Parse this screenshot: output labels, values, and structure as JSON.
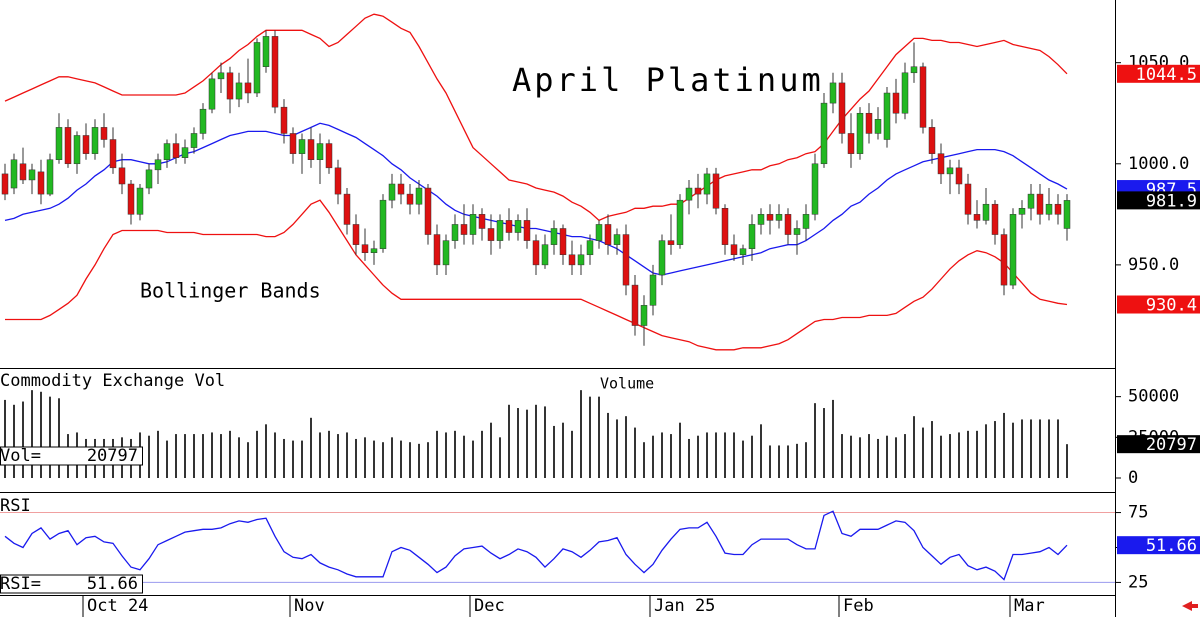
{
  "chart_data": [
    {
      "type": "candlestick",
      "title": "April Platinum",
      "annotation": "Bollinger Bands",
      "categories": [
        null,
        null,
        null,
        null,
        null,
        null,
        null,
        null,
        null,
        "Oct 24",
        null,
        null,
        null,
        null,
        null,
        null,
        null,
        null,
        null,
        null,
        null,
        null,
        null,
        null,
        null,
        null,
        null,
        null,
        null,
        null,
        null,
        null,
        "Nov",
        null,
        null,
        null,
        null,
        null,
        null,
        null,
        null,
        null,
        null,
        null,
        null,
        null,
        null,
        null,
        null,
        null,
        null,
        null,
        "Dec",
        null,
        null,
        null,
        null,
        null,
        null,
        null,
        null,
        null,
        null,
        null,
        null,
        null,
        null,
        null,
        null,
        null,
        null,
        null,
        "Jan 25",
        null,
        null,
        null,
        null,
        null,
        null,
        null,
        null,
        null,
        null,
        null,
        null,
        null,
        null,
        null,
        null,
        null,
        null,
        null,
        null,
        "Feb",
        null,
        null,
        null,
        null,
        null,
        null,
        null,
        null,
        null,
        null,
        null,
        null,
        null,
        null,
        null,
        null,
        null,
        null,
        "Mar",
        null,
        null,
        null,
        null,
        null,
        null
      ],
      "open": [
        995,
        988,
        1000,
        992,
        996,
        985,
        1002,
        1018,
        1000,
        1014,
        1005,
        1018,
        1012,
        998,
        990,
        975,
        988,
        997,
        1002,
        1010,
        1003,
        1008,
        1015,
        1027,
        1042,
        1045,
        1032,
        1040,
        1035,
        1048,
        1063,
        1028,
        1015,
        1005,
        1012,
        1002,
        1010,
        998,
        985,
        970,
        960,
        956,
        958,
        982,
        990,
        985,
        980,
        988,
        965,
        950,
        962,
        970,
        965,
        975,
        968,
        962,
        972,
        966,
        972,
        962,
        950,
        960,
        968,
        955,
        950,
        955,
        962,
        970,
        960,
        965,
        940,
        920,
        930,
        945,
        962,
        960,
        982,
        988,
        985,
        995,
        978,
        960,
        955,
        958,
        970,
        975,
        972,
        975,
        965,
        968,
        975,
        1000,
        1030,
        1040,
        1015,
        1005,
        1025,
        1015,
        1012,
        1035,
        1025,
        1045,
        1048,
        1018,
        1005,
        995,
        998,
        990,
        975,
        972,
        980,
        965,
        940,
        975,
        978,
        985,
        975,
        980,
        968
      ],
      "high": [
        1000,
        1005,
        1008,
        1000,
        1002,
        1005,
        1025,
        1022,
        1016,
        1020,
        1022,
        1025,
        1018,
        1005,
        992,
        990,
        1000,
        1005,
        1012,
        1015,
        1012,
        1018,
        1030,
        1045,
        1050,
        1048,
        1045,
        1052,
        1062,
        1066,
        1066,
        1032,
        1018,
        1015,
        1018,
        1015,
        1012,
        1002,
        988,
        975,
        968,
        962,
        985,
        995,
        995,
        990,
        992,
        990,
        970,
        965,
        975,
        980,
        980,
        978,
        975,
        975,
        978,
        975,
        978,
        965,
        965,
        972,
        970,
        962,
        960,
        965,
        972,
        975,
        968,
        970,
        945,
        935,
        950,
        965,
        975,
        985,
        992,
        995,
        998,
        998,
        980,
        965,
        960,
        975,
        978,
        980,
        980,
        978,
        972,
        980,
        1005,
        1035,
        1045,
        1045,
        1025,
        1028,
        1030,
        1028,
        1038,
        1042,
        1050,
        1060,
        1050,
        1022,
        1010,
        1002,
        1002,
        995,
        982,
        988,
        982,
        968,
        978,
        982,
        990,
        990,
        988,
        985,
        985
      ],
      "low": [
        982,
        985,
        990,
        985,
        980,
        984,
        1000,
        998,
        995,
        1002,
        1002,
        1008,
        995,
        985,
        970,
        972,
        985,
        990,
        998,
        1000,
        1000,
        1005,
        1012,
        1025,
        1035,
        1025,
        1028,
        1030,
        1033,
        1045,
        1025,
        1010,
        1000,
        995,
        998,
        990,
        995,
        980,
        965,
        955,
        952,
        950,
        956,
        978,
        980,
        975,
        975,
        960,
        945,
        945,
        958,
        960,
        960,
        962,
        955,
        958,
        962,
        962,
        958,
        945,
        948,
        955,
        950,
        945,
        945,
        950,
        958,
        955,
        955,
        935,
        915,
        910,
        925,
        940,
        955,
        958,
        975,
        978,
        980,
        975,
        955,
        952,
        950,
        952,
        965,
        965,
        968,
        960,
        955,
        962,
        972,
        998,
        1025,
        1010,
        998,
        1002,
        1010,
        1012,
        1008,
        1020,
        1022,
        1040,
        1015,
        1000,
        990,
        985,
        985,
        970,
        968,
        970,
        960,
        935,
        938,
        968,
        972,
        970,
        972,
        970,
        962
      ],
      "close": [
        985,
        1002,
        992,
        997,
        985,
        1002,
        1018,
        1000,
        1014,
        1005,
        1018,
        1012,
        998,
        990,
        975,
        988,
        997,
        1002,
        1010,
        1003,
        1008,
        1015,
        1027,
        1042,
        1045,
        1032,
        1040,
        1035,
        1060,
        1063,
        1028,
        1015,
        1005,
        1012,
        1002,
        1010,
        998,
        985,
        970,
        960,
        956,
        958,
        982,
        990,
        985,
        980,
        988,
        965,
        950,
        962,
        970,
        965,
        975,
        968,
        962,
        972,
        966,
        972,
        962,
        950,
        960,
        968,
        955,
        950,
        955,
        962,
        970,
        960,
        965,
        940,
        920,
        930,
        945,
        962,
        960,
        982,
        988,
        985,
        995,
        978,
        960,
        955,
        958,
        970,
        975,
        972,
        975,
        965,
        968,
        975,
        1000,
        1030,
        1040,
        1015,
        1005,
        1025,
        1015,
        1022,
        1035,
        1025,
        1045,
        1048,
        1018,
        1005,
        995,
        998,
        990,
        975,
        972,
        980,
        965,
        940,
        975,
        978,
        985,
        975,
        980,
        975,
        981.9
      ],
      "up_color": "#22b822",
      "down_color": "#dd1111",
      "last_value_color": "#000000",
      "series": [
        {
          "color": "#ee1111",
          "values": [
            1031,
            1033,
            1035,
            1037,
            1039,
            1041,
            1043,
            1043,
            1042,
            1041,
            1040,
            1038,
            1036,
            1034,
            1034,
            1034,
            1034,
            1034,
            1034,
            1034,
            1035,
            1038,
            1041,
            1045,
            1049,
            1052,
            1056,
            1059,
            1063,
            1066,
            1066,
            1066,
            1066,
            1066,
            1064,
            1062,
            1058,
            1060,
            1064,
            1068,
            1072,
            1074,
            1073,
            1070,
            1067,
            1065,
            1058,
            1050,
            1042,
            1035,
            1026,
            1017,
            1008,
            1004,
            1000,
            996,
            992,
            991,
            990,
            988,
            987,
            986,
            984,
            981,
            979,
            976,
            972,
            974,
            975,
            976,
            978,
            978,
            979,
            979,
            980,
            980,
            983,
            986,
            989,
            992,
            994,
            995,
            996,
            997,
            997,
            999,
            1000,
            1002,
            1003,
            1005,
            1006,
            1010,
            1016,
            1022,
            1027,
            1032,
            1036,
            1042,
            1048,
            1054,
            1058,
            1062,
            1062,
            1061,
            1061,
            1060,
            1060,
            1059,
            1058,
            1059,
            1060,
            1061,
            1059,
            1058,
            1057,
            1056,
            1053,
            1049,
            1044.5
          ]
        },
        {
          "color": "#1a1aee",
          "values": [
            972,
            973,
            975,
            976,
            977,
            978,
            980,
            983,
            987,
            990,
            994,
            997,
            1001,
            1002,
            1002,
            1001,
            1000,
            1000,
            1001,
            1003,
            1005,
            1006,
            1008,
            1010,
            1012,
            1014,
            1015,
            1016,
            1016,
            1016,
            1015,
            1014,
            1014,
            1016,
            1018,
            1020,
            1019,
            1017,
            1015,
            1013,
            1010,
            1007,
            1004,
            1000,
            997,
            993,
            990,
            987,
            984,
            980,
            977,
            975,
            974,
            973,
            972,
            971,
            970,
            969,
            968,
            968,
            967,
            966,
            965,
            964,
            964,
            963,
            962,
            960,
            958,
            955,
            952,
            949,
            946,
            945,
            946,
            947,
            948,
            949,
            950,
            951,
            952,
            953,
            954,
            955,
            956,
            958,
            959,
            960,
            960,
            962,
            965,
            968,
            972,
            975,
            979,
            981,
            985,
            988,
            992,
            995,
            997,
            999,
            1001,
            1002,
            1003,
            1004,
            1005,
            1006,
            1007,
            1007,
            1007,
            1006,
            1004,
            1001,
            998,
            995,
            992,
            990,
            987.5
          ]
        },
        {
          "color": "#ee1111",
          "values": [
            923,
            923,
            923,
            923,
            923,
            925,
            928,
            931,
            935,
            943,
            950,
            958,
            965,
            967,
            967,
            967,
            967,
            967,
            966,
            966,
            966,
            966,
            965,
            965,
            965,
            965,
            965,
            965,
            965,
            964,
            964,
            966,
            970,
            975,
            980,
            982,
            976,
            969,
            962,
            955,
            950,
            945,
            940,
            936,
            933,
            933,
            933,
            933,
            933,
            933,
            933,
            933,
            933,
            933,
            933,
            933,
            933,
            933,
            933,
            933,
            933,
            933,
            933,
            933,
            933,
            931,
            929,
            927,
            925,
            923,
            921,
            919,
            917,
            915,
            914,
            913,
            912,
            910,
            909,
            908,
            908,
            908,
            909,
            909,
            909,
            910,
            911,
            913,
            916,
            919,
            922,
            923,
            923,
            924,
            924,
            924,
            925,
            925,
            925,
            926,
            929,
            932,
            934,
            938,
            943,
            948,
            952,
            955,
            957,
            956,
            954,
            951,
            946,
            941,
            936,
            933,
            932,
            931,
            930.4
          ]
        }
      ],
      "ylim": [
        899,
        1081
      ],
      "yticks": [
        {
          "value": 950,
          "label": "950.0"
        },
        {
          "value": 1000,
          "label": "1000.0"
        },
        {
          "value": 1050,
          "label": "1050.0"
        }
      ]
    },
    {
      "type": "bar",
      "title": "Commodity Exchange Vol",
      "subtitle": "Volume",
      "readout_label": "Vol=",
      "color": "#000000",
      "values": [
        48000,
        45000,
        47000,
        54000,
        53000,
        50000,
        49000,
        27000,
        28000,
        24000,
        24000,
        24000,
        24000,
        25000,
        24000,
        28000,
        26000,
        29000,
        23000,
        27000,
        27000,
        27000,
        27000,
        28000,
        27000,
        29000,
        25000,
        22000,
        29000,
        33000,
        28000,
        24000,
        23000,
        23000,
        37000,
        28000,
        29000,
        27000,
        28000,
        24000,
        25000,
        23000,
        22000,
        25000,
        23000,
        22000,
        21000,
        22000,
        29000,
        28000,
        29000,
        26000,
        23000,
        29000,
        34000,
        25000,
        45000,
        43000,
        42000,
        45000,
        44000,
        32000,
        34000,
        29000,
        54000,
        50000,
        50000,
        40000,
        36000,
        38000,
        31000,
        22000,
        26000,
        28000,
        27000,
        34000,
        24000,
        26000,
        28000,
        28000,
        28000,
        28000,
        23000,
        26000,
        33000,
        20000,
        20000,
        20000,
        21000,
        22000,
        46000,
        43000,
        48000,
        27000,
        26000,
        25000,
        27000,
        24000,
        26000,
        25000,
        27000,
        38000,
        31000,
        35000,
        26000,
        27000,
        28000,
        29000,
        29000,
        33000,
        35000,
        40000,
        34000,
        36000,
        36000,
        36000,
        36000,
        36000,
        20797
      ],
      "ylim": [
        0,
        67000
      ],
      "yticks": [
        0,
        25000,
        50000
      ]
    },
    {
      "type": "line",
      "title": "RSI",
      "readout_label": "RSI=",
      "color": "#1a1aee",
      "values": [
        58,
        53,
        50,
        60,
        64,
        56,
        60,
        62,
        52,
        57,
        58,
        54,
        53,
        44,
        36,
        34,
        42,
        52,
        55,
        58,
        61,
        62,
        63,
        63,
        64,
        67,
        69,
        68,
        70,
        71,
        58,
        47,
        43,
        42,
        45,
        39,
        36,
        34,
        31,
        29,
        29,
        29,
        29,
        47,
        50,
        48,
        43,
        38,
        32,
        36,
        44,
        49,
        50,
        51,
        46,
        42,
        45,
        49,
        47,
        43,
        36,
        42,
        49,
        47,
        43,
        48,
        54,
        55,
        57,
        45,
        38,
        32,
        38,
        48,
        56,
        63,
        64,
        64,
        68,
        58,
        46,
        45,
        45,
        52,
        56,
        56,
        56,
        56,
        52,
        49,
        49,
        73,
        76,
        60,
        58,
        63,
        63,
        63,
        66,
        69,
        68,
        62,
        50,
        44,
        38,
        43,
        45,
        37,
        34,
        36,
        33,
        27,
        45,
        45,
        46,
        47,
        50,
        45,
        51.66
      ],
      "ylim": [
        16,
        89
      ],
      "yticks": [
        25,
        50,
        75
      ],
      "reference_lines": [
        {
          "value": 75,
          "color": "#f0a0a0"
        },
        {
          "value": 25,
          "color": "#9a9aee"
        }
      ]
    }
  ]
}
